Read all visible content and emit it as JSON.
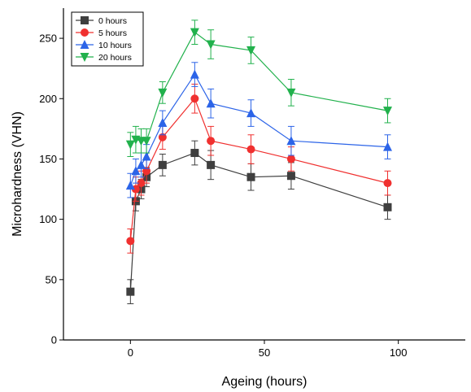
{
  "chart_data": {
    "type": "line",
    "xlabel": "Ageing (hours)",
    "ylabel": "Microhardness (VHN)",
    "xlim": [
      -25,
      125
    ],
    "ylim": [
      0,
      275
    ],
    "xticks": [
      0,
      50,
      100
    ],
    "yticks": [
      0,
      50,
      100,
      150,
      200,
      250
    ],
    "legend_position": "top-left",
    "series": [
      {
        "name": "0 hours",
        "color": "#3f3f3f",
        "marker": "square",
        "x": [
          0,
          2,
          4,
          6,
          12,
          24,
          30,
          45,
          60,
          96
        ],
        "y": [
          40,
          115,
          125,
          135,
          145,
          155,
          145,
          135,
          136,
          110
        ],
        "error": [
          10,
          8,
          8,
          8,
          9,
          10,
          12,
          11,
          11,
          10
        ]
      },
      {
        "name": "5 hours",
        "color": "#f0302f",
        "marker": "circle",
        "x": [
          0,
          2,
          4,
          6,
          12,
          24,
          30,
          45,
          60,
          96
        ],
        "y": [
          82,
          125,
          130,
          140,
          168,
          200,
          165,
          158,
          150,
          130
        ],
        "error": [
          10,
          10,
          10,
          10,
          10,
          12,
          12,
          12,
          10,
          10
        ]
      },
      {
        "name": "10 hours",
        "color": "#2c64e8",
        "marker": "triangle-up",
        "x": [
          0,
          2,
          4,
          6,
          12,
          24,
          30,
          45,
          60,
          96
        ],
        "y": [
          128,
          140,
          145,
          152,
          180,
          220,
          196,
          188,
          165,
          160
        ],
        "error": [
          10,
          10,
          10,
          10,
          10,
          10,
          12,
          11,
          12,
          10
        ]
      },
      {
        "name": "20 hours",
        "color": "#21b14c",
        "marker": "triangle-down",
        "x": [
          0,
          2,
          4,
          6,
          12,
          24,
          30,
          45,
          60,
          96
        ],
        "y": [
          162,
          166,
          165,
          165,
          205,
          255,
          245,
          240,
          205,
          190
        ],
        "error": [
          10,
          11,
          10,
          10,
          9,
          10,
          12,
          11,
          11,
          10
        ]
      }
    ]
  }
}
